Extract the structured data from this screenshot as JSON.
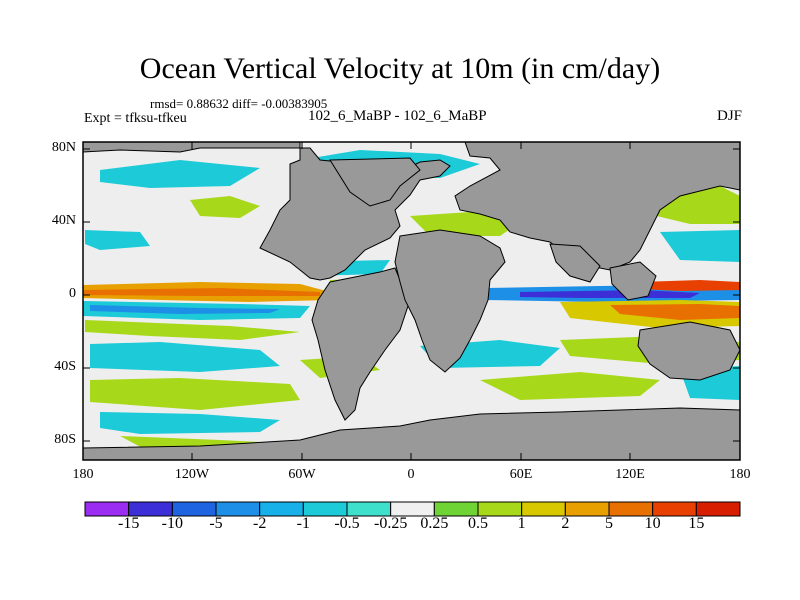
{
  "title": "Ocean Vertical Velocity at 10m (in cm/day)",
  "stats_line": "rmsd= 0.88632 diff= -0.00383905",
  "experiment": "Expt = tfksu-tfkeu",
  "experiment_names": "102_6_MaBP - 102_6_MaBP",
  "season": "DJF",
  "lat_axis": [
    "80N",
    "40N",
    "0",
    "40S",
    "80S"
  ],
  "lon_axis": [
    "180",
    "120W",
    "60W",
    "0",
    "60E",
    "120E",
    "180"
  ],
  "colorbar": {
    "labels": [
      "-15",
      "-10",
      "-5",
      "-2",
      "-1",
      "-0.5",
      "-0.25",
      "0.25",
      "0.5",
      "1",
      "2",
      "5",
      "10",
      "15"
    ],
    "colors": [
      "#9b2df2",
      "#3c2fd8",
      "#1e64e0",
      "#1d8fe6",
      "#17b0e8",
      "#1ccad8",
      "#3ee0cc",
      "#f0f0f0",
      "#6fd336",
      "#a8d81a",
      "#d8c800",
      "#e8a000",
      "#e87000",
      "#e84000",
      "#d81e00"
    ]
  },
  "colors": {
    "land": "#999999",
    "ocean_background": "#eeeeee"
  }
}
